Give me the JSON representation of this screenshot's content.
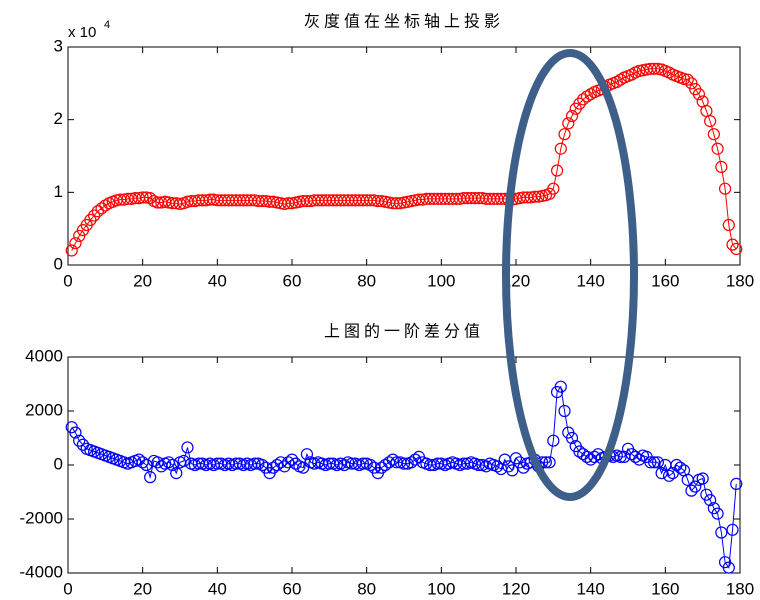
{
  "chart_data": [
    {
      "type": "line",
      "title": "灰度值在坐标轴上投影",
      "y_multiplier": "x 10",
      "y_multiplier_exponent": "4",
      "xlim": [
        0,
        180
      ],
      "xticks": [
        0,
        20,
        40,
        60,
        80,
        100,
        120,
        140,
        160,
        180
      ],
      "ylim": [
        0,
        3
      ],
      "yticks": [
        0,
        1,
        2,
        3
      ],
      "grid": false,
      "x": [
        1,
        2,
        3,
        4,
        5,
        6,
        7,
        8,
        9,
        10,
        11,
        12,
        13,
        14,
        15,
        16,
        17,
        18,
        19,
        20,
        21,
        22,
        23,
        24,
        25,
        26,
        27,
        28,
        29,
        30,
        31,
        32,
        33,
        34,
        35,
        36,
        37,
        38,
        39,
        40,
        41,
        42,
        43,
        44,
        45,
        46,
        47,
        48,
        49,
        50,
        51,
        52,
        53,
        54,
        55,
        56,
        57,
        58,
        59,
        60,
        61,
        62,
        63,
        64,
        65,
        66,
        67,
        68,
        69,
        70,
        71,
        72,
        73,
        74,
        75,
        76,
        77,
        78,
        79,
        80,
        81,
        82,
        83,
        84,
        85,
        86,
        87,
        88,
        89,
        90,
        91,
        92,
        93,
        94,
        95,
        96,
        97,
        98,
        99,
        100,
        101,
        102,
        103,
        104,
        105,
        106,
        107,
        108,
        109,
        110,
        111,
        112,
        113,
        114,
        115,
        116,
        117,
        118,
        119,
        120,
        121,
        122,
        123,
        124,
        125,
        126,
        127,
        128,
        129,
        130,
        131,
        132,
        133,
        134,
        135,
        136,
        137,
        138,
        139,
        140,
        141,
        142,
        143,
        144,
        145,
        146,
        147,
        148,
        149,
        150,
        151,
        152,
        153,
        154,
        155,
        156,
        157,
        158,
        159,
        160,
        161,
        162,
        163,
        164,
        165,
        166,
        167,
        168,
        169,
        170,
        171,
        172,
        173,
        174,
        175,
        176,
        177,
        178,
        179
      ],
      "series": [
        {
          "color": "#ff0000",
          "values": [
            0.2,
            0.3,
            0.4,
            0.48,
            0.55,
            0.62,
            0.68,
            0.74,
            0.78,
            0.82,
            0.85,
            0.87,
            0.89,
            0.9,
            0.9,
            0.91,
            0.91,
            0.92,
            0.92,
            0.93,
            0.93,
            0.92,
            0.88,
            0.86,
            0.86,
            0.87,
            0.86,
            0.85,
            0.85,
            0.84,
            0.85,
            0.87,
            0.88,
            0.88,
            0.89,
            0.89,
            0.89,
            0.9,
            0.9,
            0.89,
            0.89,
            0.89,
            0.89,
            0.89,
            0.89,
            0.89,
            0.89,
            0.89,
            0.89,
            0.89,
            0.88,
            0.88,
            0.88,
            0.87,
            0.87,
            0.86,
            0.85,
            0.84,
            0.85,
            0.85,
            0.86,
            0.87,
            0.88,
            0.88,
            0.88,
            0.89,
            0.89,
            0.89,
            0.89,
            0.89,
            0.89,
            0.89,
            0.89,
            0.89,
            0.89,
            0.89,
            0.89,
            0.89,
            0.89,
            0.89,
            0.89,
            0.89,
            0.88,
            0.88,
            0.87,
            0.86,
            0.85,
            0.85,
            0.85,
            0.86,
            0.87,
            0.88,
            0.89,
            0.9,
            0.9,
            0.91,
            0.91,
            0.91,
            0.91,
            0.91,
            0.91,
            0.91,
            0.91,
            0.91,
            0.91,
            0.92,
            0.92,
            0.92,
            0.92,
            0.92,
            0.92,
            0.91,
            0.91,
            0.91,
            0.91,
            0.91,
            0.91,
            0.9,
            0.9,
            0.91,
            0.92,
            0.93,
            0.93,
            0.93,
            0.94,
            0.94,
            0.95,
            0.96,
            0.98,
            1.05,
            1.3,
            1.6,
            1.8,
            1.95,
            2.05,
            2.15,
            2.22,
            2.28,
            2.32,
            2.35,
            2.38,
            2.4,
            2.42,
            2.45,
            2.48,
            2.5,
            2.52,
            2.55,
            2.58,
            2.6,
            2.62,
            2.65,
            2.67,
            2.68,
            2.69,
            2.7,
            2.7,
            2.7,
            2.69,
            2.67,
            2.65,
            2.62,
            2.6,
            2.58,
            2.56,
            2.55,
            2.5,
            2.42,
            2.35,
            2.25,
            2.12,
            1.98,
            1.8,
            1.6,
            1.35,
            1.05,
            0.55,
            0.28,
            0.22
          ]
        }
      ]
    },
    {
      "type": "line",
      "title": "上图的一阶差分值",
      "xlim": [
        0,
        180
      ],
      "xticks": [
        0,
        20,
        40,
        60,
        80,
        100,
        120,
        140,
        160,
        180
      ],
      "ylim": [
        -4000,
        4000
      ],
      "yticks": [
        -4000,
        -2000,
        0,
        2000,
        4000
      ],
      "grid": false,
      "x": [
        1,
        2,
        3,
        4,
        5,
        6,
        7,
        8,
        9,
        10,
        11,
        12,
        13,
        14,
        15,
        16,
        17,
        18,
        19,
        20,
        21,
        22,
        23,
        24,
        25,
        26,
        27,
        28,
        29,
        30,
        31,
        32,
        33,
        34,
        35,
        36,
        37,
        38,
        39,
        40,
        41,
        42,
        43,
        44,
        45,
        46,
        47,
        48,
        49,
        50,
        51,
        52,
        53,
        54,
        55,
        56,
        57,
        58,
        59,
        60,
        61,
        62,
        63,
        64,
        65,
        66,
        67,
        68,
        69,
        70,
        71,
        72,
        73,
        74,
        75,
        76,
        77,
        78,
        79,
        80,
        81,
        82,
        83,
        84,
        85,
        86,
        87,
        88,
        89,
        90,
        91,
        92,
        93,
        94,
        95,
        96,
        97,
        98,
        99,
        100,
        101,
        102,
        103,
        104,
        105,
        106,
        107,
        108,
        109,
        110,
        111,
        112,
        113,
        114,
        115,
        116,
        117,
        118,
        119,
        120,
        121,
        122,
        123,
        124,
        125,
        126,
        127,
        128,
        129,
        130,
        131,
        132,
        133,
        134,
        135,
        136,
        137,
        138,
        139,
        140,
        141,
        142,
        143,
        144,
        145,
        146,
        147,
        148,
        149,
        150,
        151,
        152,
        153,
        154,
        155,
        156,
        157,
        158,
        159,
        160,
        161,
        162,
        163,
        164,
        165,
        166,
        167,
        168,
        169,
        170,
        171,
        172,
        173,
        174,
        175,
        176,
        177,
        178,
        179
      ],
      "series": [
        {
          "color": "#0000ff",
          "values": [
            1400,
            1200,
            900,
            750,
            600,
            550,
            500,
            450,
            400,
            350,
            300,
            250,
            200,
            150,
            100,
            50,
            100,
            150,
            200,
            100,
            0,
            -450,
            150,
            100,
            -50,
            50,
            100,
            0,
            -300,
            100,
            150,
            650,
            50,
            0,
            50,
            50,
            0,
            50,
            0,
            50,
            50,
            0,
            50,
            0,
            50,
            50,
            0,
            50,
            0,
            50,
            50,
            0,
            -100,
            -300,
            -100,
            0,
            100,
            -50,
            100,
            200,
            50,
            -50,
            -100,
            400,
            100,
            50,
            100,
            50,
            0,
            50,
            50,
            0,
            50,
            0,
            100,
            50,
            50,
            0,
            50,
            50,
            0,
            -100,
            -300,
            -100,
            0,
            100,
            200,
            100,
            100,
            50,
            50,
            100,
            200,
            300,
            100,
            50,
            0,
            0,
            50,
            50,
            0,
            50,
            100,
            50,
            0,
            50,
            50,
            100,
            50,
            0,
            0,
            -50,
            50,
            0,
            -50,
            -150,
            200,
            -50,
            -200,
            250,
            100,
            -100,
            50,
            100,
            200,
            -50,
            100,
            100,
            100,
            900,
            2700,
            2900,
            2000,
            1200,
            1000,
            700,
            500,
            400,
            300,
            200,
            300,
            400,
            250,
            300,
            350,
            300,
            350,
            300,
            300,
            600,
            400,
            300,
            200,
            350,
            300,
            100,
            100,
            100,
            -300,
            0,
            -400,
            -300,
            0,
            -100,
            -200,
            -550,
            -950,
            -800,
            -550,
            -500,
            -1100,
            -1300,
            -1600,
            -1800,
            -2500,
            -3600,
            -3800,
            -2400,
            -700
          ]
        }
      ]
    }
  ]
}
